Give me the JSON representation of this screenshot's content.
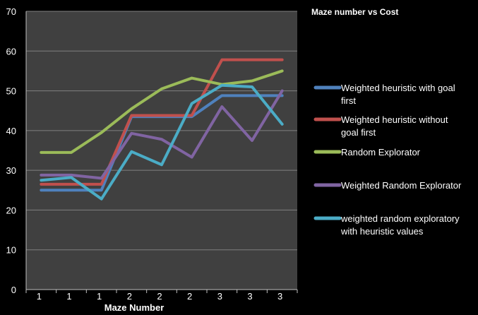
{
  "chart_data": {
    "type": "line",
    "title": "Maze number vs Cost",
    "xlabel": "Maze Number",
    "ylabel": "",
    "categories": [
      "1",
      "1",
      "1",
      "2",
      "2",
      "2",
      "3",
      "3",
      "3"
    ],
    "ylim": [
      0,
      70
    ],
    "yticks": [
      0,
      10,
      20,
      30,
      40,
      50,
      60,
      70
    ],
    "grid": true,
    "legend_position": "right",
    "plot_background": "#404040",
    "gridline_color": "#7f7f7f",
    "series": [
      {
        "name": [
          "Weighted heuristic with goal",
          "first"
        ],
        "color": "#4f81bd",
        "values": [
          25,
          25,
          25,
          43.5,
          43.5,
          43.5,
          48.8,
          48.8,
          48.8
        ]
      },
      {
        "name": [
          "Weighted heuristic without",
          "goal first"
        ],
        "color": "#c0504d",
        "values": [
          26.5,
          26.5,
          26.5,
          43.8,
          43.8,
          43.8,
          57.8,
          57.8,
          57.8
        ]
      },
      {
        "name": [
          "Random Explorator"
        ],
        "color": "#9bbb59",
        "values": [
          34.5,
          34.5,
          39.5,
          45.5,
          50.5,
          53.2,
          51.6,
          52.5,
          55
        ]
      },
      {
        "name": [
          "Weighted Random Explorator"
        ],
        "color": "#8064a2",
        "values": [
          28.8,
          28.8,
          28,
          39.3,
          37.8,
          33.3,
          46,
          37.5,
          50
        ]
      },
      {
        "name": [
          "weighted random exploratory",
          "with heuristic values"
        ],
        "color": "#4bacc6",
        "values": [
          27.5,
          28.2,
          22.8,
          34.7,
          31.4,
          46.8,
          51.4,
          51,
          41.6
        ]
      }
    ]
  }
}
